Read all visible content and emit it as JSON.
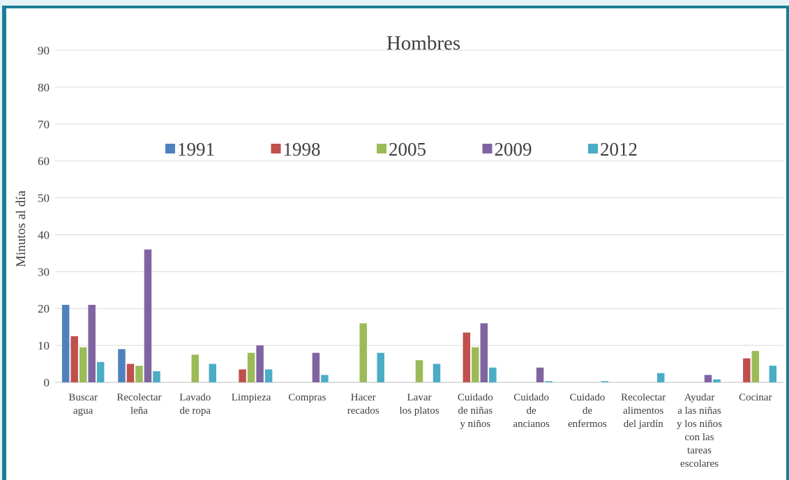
{
  "chart_data": {
    "type": "bar",
    "title": "Hombres",
    "ylabel": "Minutos al día",
    "xlabel": "",
    "ylim": [
      0,
      90
    ],
    "yticks": [
      0,
      10,
      20,
      30,
      40,
      50,
      60,
      70,
      80,
      90
    ],
    "grid": true,
    "legend_position": "top",
    "categories": [
      "Buscar agua",
      "Recolectar leña",
      "Lavado de ropa",
      "Limpieza",
      "Compras",
      "Hacer recados",
      "Lavar los platos",
      "Cuidado de niñas y niños",
      "Cuidado de ancianos",
      "Cuidado de enfermos",
      "Recolectar alimentos del jardín",
      "Ayudar a las niñas y los niños con las tareas escolares",
      "Cocinar"
    ],
    "category_label_lines": [
      [
        "Buscar",
        "agua"
      ],
      [
        "Recolectar",
        "leña"
      ],
      [
        "Lavado",
        "de ropa"
      ],
      [
        "Limpieza"
      ],
      [
        "Compras"
      ],
      [
        "Hacer",
        "recados"
      ],
      [
        "Lavar",
        "los platos"
      ],
      [
        "Cuidado",
        "de  niñas",
        "y niños"
      ],
      [
        "Cuidado",
        "de",
        "ancianos"
      ],
      [
        "Cuidado",
        "de",
        "enfermos"
      ],
      [
        "Recolectar",
        "alimentos",
        "del jardín"
      ],
      [
        "Ayudar",
        "a las niñas",
        "y los niños",
        "con las",
        "tareas",
        "escolares"
      ],
      [
        "Cocinar"
      ]
    ],
    "series": [
      {
        "name": "1991",
        "color": "#4f81bd",
        "values": [
          21,
          9,
          0,
          0,
          0,
          0,
          0,
          0,
          0,
          0,
          0,
          0,
          0
        ]
      },
      {
        "name": "1998",
        "color": "#c0504d",
        "values": [
          12.5,
          5,
          0,
          3.5,
          0,
          0,
          0,
          13.5,
          0,
          0,
          0,
          0,
          6.5
        ]
      },
      {
        "name": "2005",
        "color": "#9bbb59",
        "values": [
          9.5,
          4.5,
          7.5,
          8,
          0,
          16,
          6,
          9.5,
          0,
          0,
          0,
          0,
          8.5
        ]
      },
      {
        "name": "2009",
        "color": "#8064a2",
        "values": [
          21,
          36,
          0,
          10,
          8,
          0,
          0,
          16,
          4,
          0,
          0,
          2,
          0
        ]
      },
      {
        "name": "2012",
        "color": "#4bacc6",
        "values": [
          5.5,
          3,
          5,
          3.5,
          2,
          8,
          5,
          4,
          0.3,
          0.3,
          2.5,
          0.8,
          4.5
        ]
      }
    ]
  }
}
